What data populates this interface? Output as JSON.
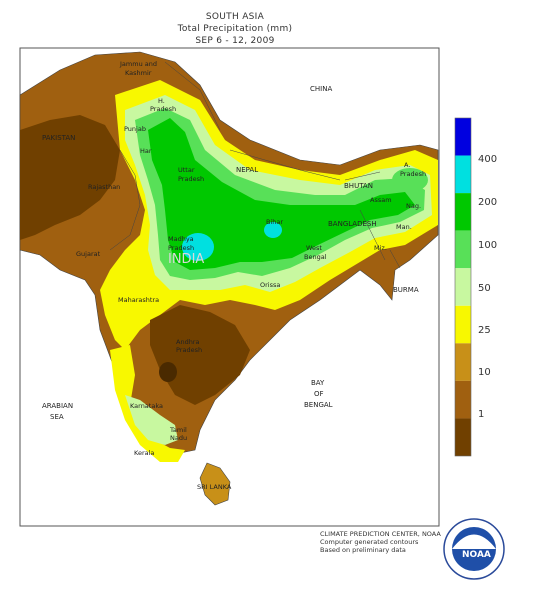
{
  "title": {
    "line1": "SOUTH ASIA",
    "line2": "Total Precipitation (mm)",
    "line3": "SEP 6 - 12, 2009"
  },
  "legend": {
    "levels": [
      "400",
      "200",
      "100",
      "50",
      "25",
      "10",
      "1"
    ],
    "colors": [
      "#0000e0",
      "#00e0e0",
      "#00c800",
      "#58e058",
      "#c8f8a0",
      "#f8f800",
      "#c89018",
      "#a06010",
      "#704000"
    ]
  },
  "labels": {
    "china": "CHINA",
    "pakistan": "PAKISTAN",
    "nepal": "NEPAL",
    "bhutan": "BHUTAN",
    "bangladesh": "BANGLADESH",
    "burma": "BURMA",
    "india": "INDIA",
    "arabian_sea_1": "ARABIAN",
    "arabian_sea_2": "SEA",
    "bay_1": "BAY",
    "bay_2": "OF",
    "bay_3": "BENGAL",
    "sri_lanka": "SRI LANKA",
    "jk_1": "Jammu and",
    "jk_2": "Kashmir",
    "hp_1": "H.",
    "hp_2": "Pradesh",
    "punjab": "Punjab",
    "har": "Har",
    "up_1": "Uttar",
    "up_2": "Pradesh",
    "rajasthan": "Rajasthan",
    "gujarat": "Gujarat",
    "mp_1": "Madhya",
    "mp_2": "Pradesh",
    "bihar": "Bihar",
    "wb_1": "West",
    "wb_2": "Bengal",
    "orissa": "Orissa",
    "maharashtra": "Maharashtra",
    "ap_1": "Andhra",
    "ap_2": "Pradesh",
    "karnataka": "Karnataka",
    "tn_1": "Tamil",
    "tn_2": "Nadu",
    "kerala": "Kerala",
    "assam": "Assam",
    "arp_1": "A.",
    "arp_2": "Pradesh",
    "nag": "Nag.",
    "man": "Man.",
    "miz": "Miz."
  },
  "credits": {
    "line1": "CLIMATE PREDICTION CENTER, NOAA",
    "line2": "Computer generated contours",
    "line3": "Based on preliminary data"
  },
  "logo_text": "NOAA"
}
